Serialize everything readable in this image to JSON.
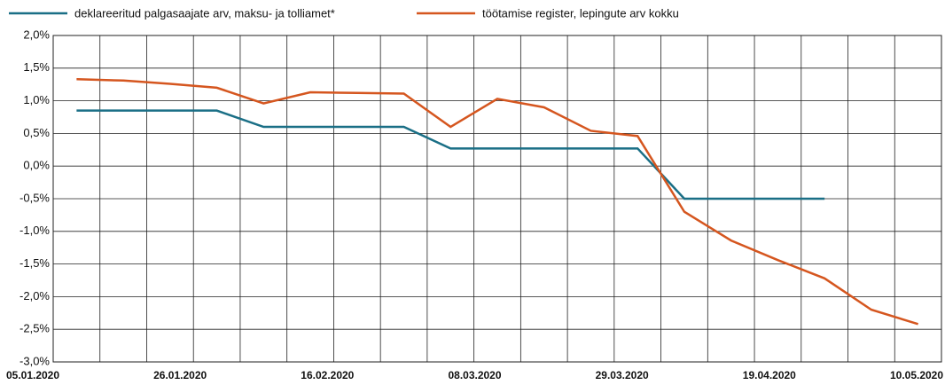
{
  "chart_data": {
    "type": "line",
    "categories": [
      "05.01.2020",
      null,
      null,
      "26.01.2020",
      null,
      null,
      "16.02.2020",
      null,
      null,
      "08.03.2020",
      null,
      null,
      "29.03.2020",
      null,
      null,
      "19.04.2020",
      null,
      null,
      "10.05.2020"
    ],
    "series": [
      {
        "name": "deklareeritud palgasaajate arv, maksu- ja tolliamet*",
        "color": "#1a6f86",
        "values": [
          0.85,
          0.85,
          0.85,
          0.85,
          0.6,
          0.6,
          0.6,
          0.6,
          0.27,
          0.27,
          0.27,
          0.27,
          0.27,
          -0.5,
          -0.5,
          -0.5,
          -0.5,
          null,
          null
        ]
      },
      {
        "name": "töötamise register, lepingute arv kokku",
        "color": "#d5561f",
        "values": [
          1.33,
          1.31,
          1.26,
          1.2,
          0.96,
          1.13,
          1.12,
          1.11,
          0.6,
          1.03,
          0.9,
          0.54,
          0.46,
          -0.7,
          -1.14,
          -1.44,
          -1.72,
          -2.2,
          -2.42
        ]
      }
    ],
    "ylim": [
      -3.0,
      2.0
    ],
    "yticks": [
      {
        "value": -3.0,
        "label": "-3,0%"
      },
      {
        "value": -2.5,
        "label": "-2,5%"
      },
      {
        "value": -2.0,
        "label": "-2,0%"
      },
      {
        "value": -1.5,
        "label": "-1,5%"
      },
      {
        "value": -1.0,
        "label": "-1,0%"
      },
      {
        "value": -0.5,
        "label": "-0,5%"
      },
      {
        "value": 0.0,
        "label": "0,0%"
      },
      {
        "value": 0.5,
        "label": "0,5%"
      },
      {
        "value": 1.0,
        "label": "1,0%"
      },
      {
        "value": 1.5,
        "label": "1,5%"
      },
      {
        "value": 2.0,
        "label": "2,0%"
      }
    ],
    "grid": true,
    "legend": "top"
  }
}
